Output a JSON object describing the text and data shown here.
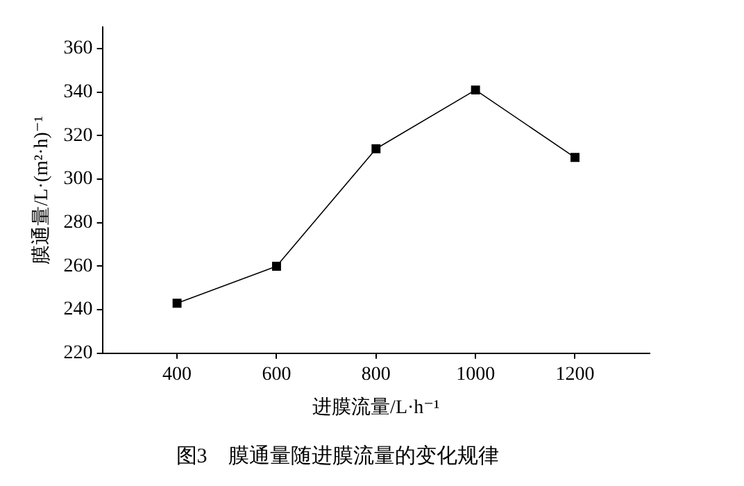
{
  "chart_data": {
    "type": "line",
    "title": "图3　膜通量随进膜流量的变化规律",
    "xlabel": "进膜流量/L·h⁻¹",
    "ylabel": "膜通量/L·(m²·h)⁻¹",
    "x": [
      400,
      600,
      800,
      1000,
      1200
    ],
    "series": [
      {
        "color": "#000000",
        "values": [
          243,
          260,
          314,
          341,
          310
        ]
      }
    ],
    "xlim": [
      250,
      1350
    ],
    "xticks": [
      400,
      600,
      800,
      1000,
      1200
    ],
    "ylim": [
      220,
      370
    ],
    "yticks": [
      220,
      240,
      260,
      280,
      300,
      320,
      340,
      360
    ],
    "grid": false,
    "legend": false,
    "marker": "square",
    "line_style": "solid"
  }
}
